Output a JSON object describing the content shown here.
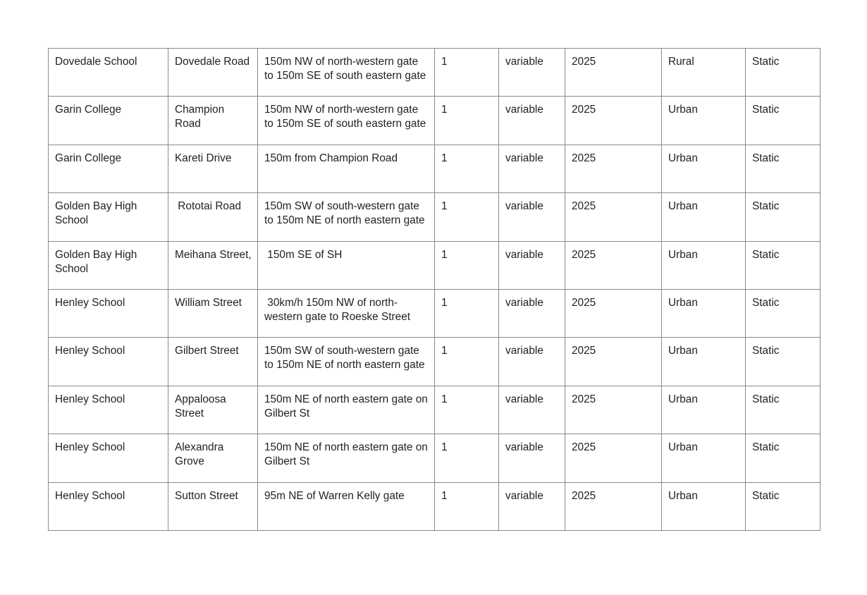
{
  "table": {
    "rows": [
      [
        "Dovedale School",
        "Dovedale Road",
        "150m NW of north-western gate to 150m SE of south eastern gate",
        "1",
        "variable",
        "2025",
        "Rural",
        "Static"
      ],
      [
        "Garin College",
        "Champion Road",
        "150m NW of north-western gate to 150m SE of south eastern gate",
        "1",
        "variable",
        "2025",
        "Urban",
        "Static"
      ],
      [
        "Garin College",
        "Kareti Drive",
        "150m from Champion Road",
        "1",
        "variable",
        "2025",
        "Urban",
        "Static"
      ],
      [
        "Golden Bay High School",
        " Rototai Road",
        "150m SW of south-western gate to 150m NE of north eastern gate",
        "1",
        "variable",
        "2025",
        "Urban",
        "Static"
      ],
      [
        "Golden Bay High School",
        "Meihana Street,",
        " 150m SE of SH",
        "1",
        "variable",
        "2025",
        "Urban",
        "Static"
      ],
      [
        "Henley School",
        "William Street",
        " 30km/h 150m NW of north-western gate to Roeske Street",
        "1",
        "variable",
        "2025",
        "Urban",
        "Static"
      ],
      [
        "Henley School",
        "Gilbert Street",
        "150m SW of south-western gate to 150m NE of north eastern gate",
        "1",
        "variable",
        "2025",
        "Urban",
        "Static"
      ],
      [
        "Henley School",
        "Appaloosa Street",
        "150m NE of north eastern gate on Gilbert St",
        "1",
        "variable",
        "2025",
        "Urban",
        "Static"
      ],
      [
        "Henley School",
        "Alexandra Grove",
        "150m NE of north eastern gate on Gilbert St",
        "1",
        "variable",
        "2025",
        "Urban",
        "Static"
      ],
      [
        "Henley School",
        "Sutton Street",
        "95m NE of Warren Kelly gate",
        "1",
        "variable",
        "2025",
        "Urban",
        "Static"
      ]
    ]
  }
}
